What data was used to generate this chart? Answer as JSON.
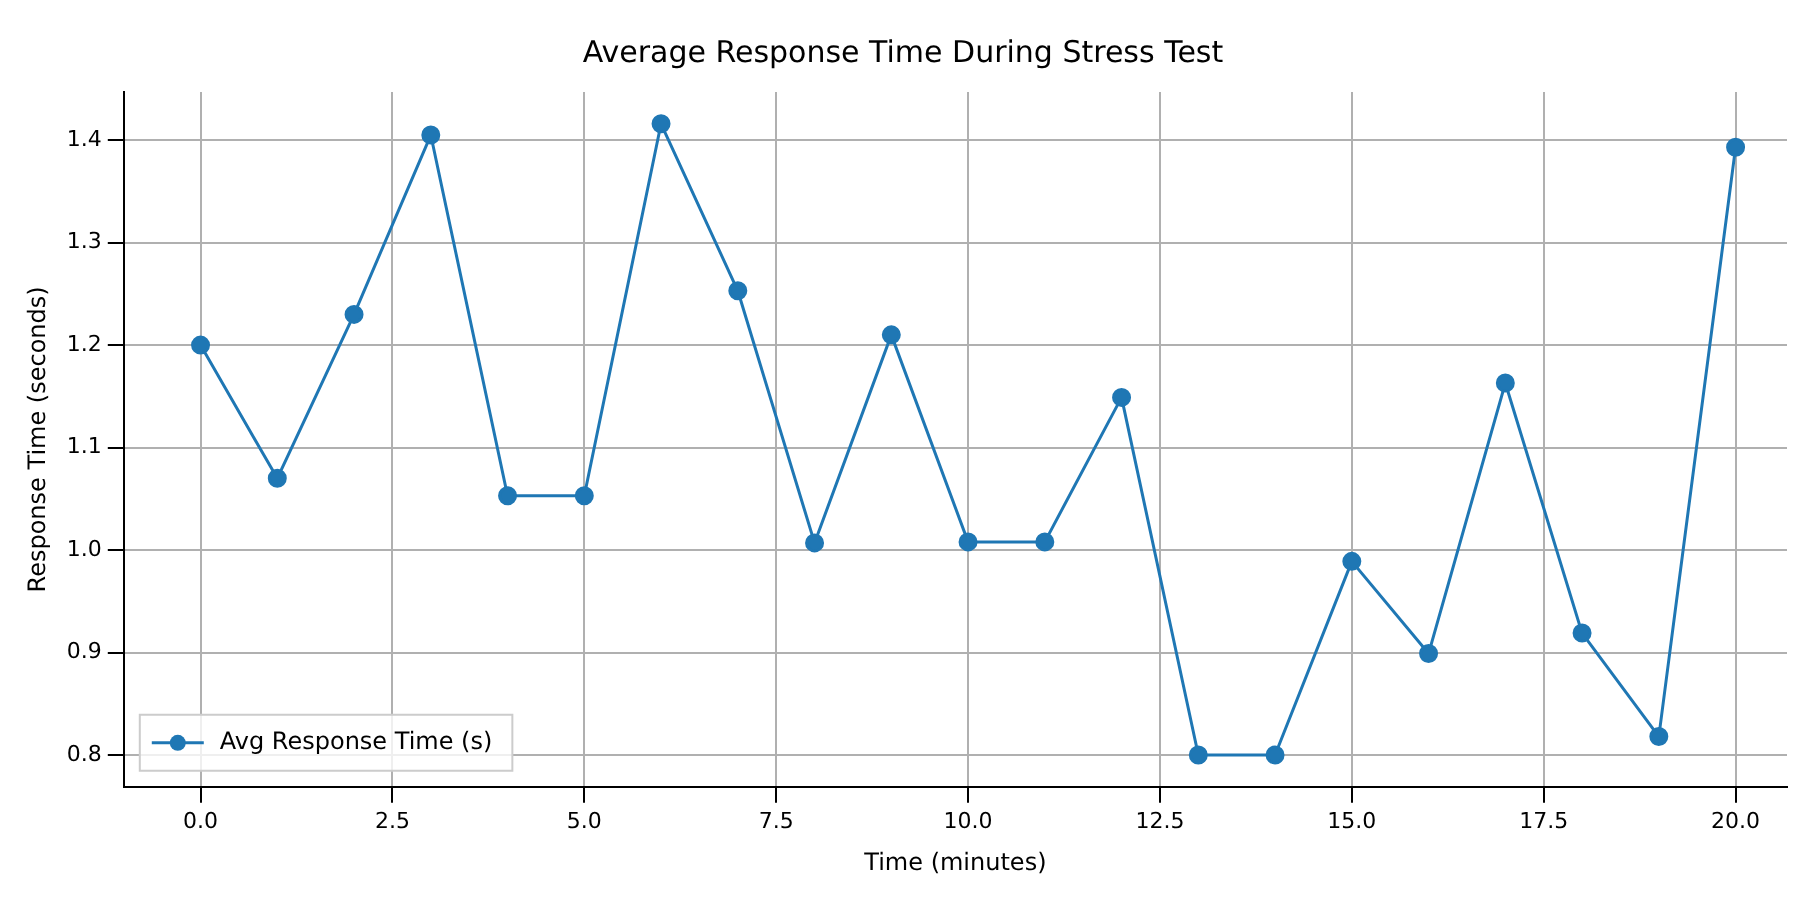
{
  "chart_data": {
    "type": "line",
    "title": "Average Response Time During Stress Test",
    "xlabel": "Time (minutes)",
    "ylabel": "Response Time (seconds)",
    "x": [
      0,
      1,
      2,
      3,
      4,
      5,
      6,
      7,
      8,
      9,
      10,
      11,
      12,
      13,
      14,
      15,
      16,
      17,
      18,
      19,
      20
    ],
    "series": [
      {
        "name": "Avg Response Time (s)",
        "color": "#1f77b4",
        "values": [
          1.2,
          1.07,
          1.23,
          1.405,
          1.053,
          1.053,
          1.416,
          1.253,
          1.007,
          1.21,
          1.008,
          1.008,
          1.149,
          0.8,
          0.8,
          0.989,
          0.899,
          1.163,
          0.919,
          0.818,
          1.393
        ]
      }
    ],
    "xlim": [
      -1.0,
      20.67
    ],
    "ylim": [
      0.769,
      1.447
    ],
    "xticks": [
      {
        "value": 0,
        "label": "0.0"
      },
      {
        "value": 2.5,
        "label": "2.5"
      },
      {
        "value": 5,
        "label": "5.0"
      },
      {
        "value": 7.5,
        "label": "7.5"
      },
      {
        "value": 10,
        "label": "10.0"
      },
      {
        "value": 12.5,
        "label": "12.5"
      },
      {
        "value": 15,
        "label": "15.0"
      },
      {
        "value": 17.5,
        "label": "17.5"
      },
      {
        "value": 20,
        "label": "20.0"
      }
    ],
    "yticks": [
      {
        "value": 0.8,
        "label": "0.8"
      },
      {
        "value": 0.9,
        "label": "0.9"
      },
      {
        "value": 1.0,
        "label": "1.0"
      },
      {
        "value": 1.1,
        "label": "1.1"
      },
      {
        "value": 1.2,
        "label": "1.2"
      },
      {
        "value": 1.3,
        "label": "1.3"
      },
      {
        "value": 1.4,
        "label": "1.4"
      }
    ],
    "grid": true,
    "legend": "bottom left",
    "marker": "circle",
    "line_style": "solid"
  }
}
